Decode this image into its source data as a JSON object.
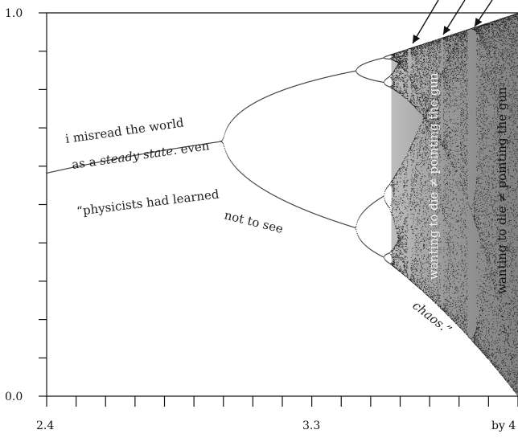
{
  "chart_data": {
    "type": "scatter",
    "title": "",
    "xlabel": "",
    "ylabel": "",
    "xlim": [
      2.4,
      4.0
    ],
    "ylim": [
      0.0,
      1.0
    ],
    "x_tick_labels": [
      "2.4",
      "3.3",
      "by 4"
    ],
    "y_tick_labels": [
      "0.0",
      "1.0"
    ],
    "grid": false,
    "series": [
      {
        "description_key": "bifurcation_branches",
        "points": [
          {
            "r": 2.4,
            "x": 0.583
          },
          {
            "r": 2.6,
            "x": 0.615
          },
          {
            "r": 2.8,
            "x": 0.643
          },
          {
            "r": 3.0,
            "x": 0.667
          },
          {
            "r": 3.2,
            "x": 0.513
          },
          {
            "r": 3.2,
            "x": 0.799
          },
          {
            "r": 3.4,
            "x": 0.452
          },
          {
            "r": 3.4,
            "x": 0.842
          },
          {
            "r": 3.5,
            "x": 0.383
          },
          {
            "r": 3.5,
            "x": 0.501
          },
          {
            "r": 3.5,
            "x": 0.827
          },
          {
            "r": 3.5,
            "x": 0.875
          }
        ]
      }
    ],
    "annotations": {
      "line1": "i misread the world",
      "line2_prefix": "as a ",
      "line2_italic": "steady state",
      "line2_suffix": ". even",
      "line3": "“physicists had learned",
      "line4": "not to see",
      "line5": "chaos.”",
      "vertical_1": "wanting to die ≠ pointing the gun",
      "vertical_2": "wanting to die ≠ pointing the gun",
      "vertical_3": "wanting to die ≠ pointing the gun"
    }
  }
}
